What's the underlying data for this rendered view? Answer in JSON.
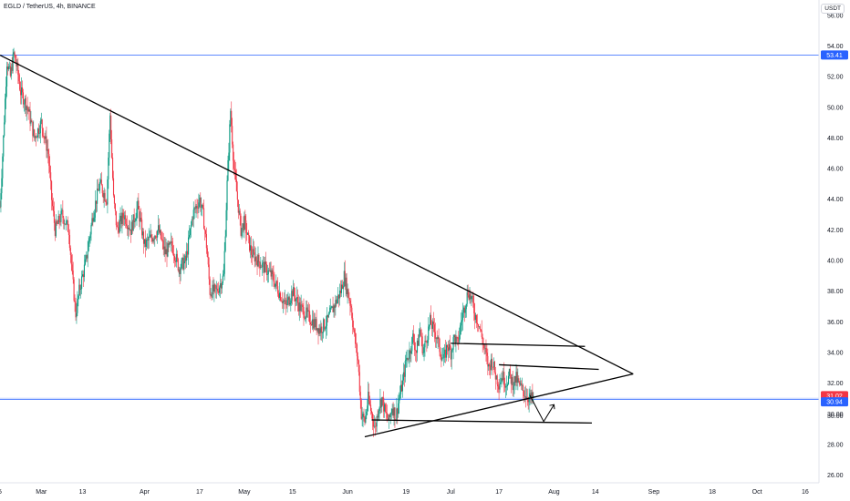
{
  "header": {
    "symbol": "EGLD / TetherUS, 4h, BINANCE"
  },
  "unit_badge": "USDT",
  "chart_data": {
    "type": "line",
    "title": "EGLD / TetherUS, 4h, BINANCE",
    "xlabel": "",
    "ylabel": "",
    "ylim": [
      25.5,
      57.0
    ],
    "y_ticks": [
      26,
      28,
      30,
      32,
      34,
      36,
      38,
      40,
      42,
      44,
      46,
      48,
      50,
      52,
      54,
      56
    ],
    "y_tick_labels": [
      "26.00",
      "28.00",
      "30.00",
      "32.00",
      "34.00",
      "36.00",
      "38.00",
      "40.00",
      "42.00",
      "44.00",
      "46.00",
      "48.00",
      "50.00",
      "52.00",
      "54.00",
      "56.00"
    ],
    "x_range": [
      0,
      238
    ],
    "x_ticks": [
      {
        "x": 0,
        "label": "5"
      },
      {
        "x": 12,
        "label": "Mar"
      },
      {
        "x": 24,
        "label": "13"
      },
      {
        "x": 42,
        "label": "Apr"
      },
      {
        "x": 58,
        "label": "17"
      },
      {
        "x": 71,
        "label": "May"
      },
      {
        "x": 85,
        "label": "15"
      },
      {
        "x": 101,
        "label": "Jun"
      },
      {
        "x": 118,
        "label": "19"
      },
      {
        "x": 131,
        "label": "Jul"
      },
      {
        "x": 145,
        "label": "17"
      },
      {
        "x": 161,
        "label": "Aug"
      },
      {
        "x": 173,
        "label": "14"
      },
      {
        "x": 190,
        "label": "Sep"
      },
      {
        "x": 207,
        "label": "18"
      },
      {
        "x": 220,
        "label": "Oct"
      },
      {
        "x": 234,
        "label": "16"
      }
    ],
    "price_waypoints": [
      [
        0,
        43.5
      ],
      [
        1,
        48
      ],
      [
        2,
        53
      ],
      [
        3,
        52
      ],
      [
        4,
        53.5
      ],
      [
        5,
        52.5
      ],
      [
        6,
        51
      ],
      [
        8,
        50
      ],
      [
        10,
        48
      ],
      [
        12,
        49
      ],
      [
        14,
        47
      ],
      [
        15,
        44
      ],
      [
        16,
        42
      ],
      [
        18,
        43
      ],
      [
        20,
        42
      ],
      [
        21,
        39
      ],
      [
        22,
        36.5
      ],
      [
        23,
        38
      ],
      [
        25,
        40
      ],
      [
        27,
        43
      ],
      [
        29,
        45
      ],
      [
        31,
        44
      ],
      [
        32,
        49.5
      ],
      [
        33,
        44
      ],
      [
        34,
        42
      ],
      [
        36,
        43
      ],
      [
        38,
        42
      ],
      [
        40,
        43.5
      ],
      [
        42,
        41
      ],
      [
        44,
        41.5
      ],
      [
        46,
        42
      ],
      [
        48,
        40.5
      ],
      [
        50,
        41
      ],
      [
        52,
        39.5
      ],
      [
        54,
        40
      ],
      [
        56,
        43
      ],
      [
        58,
        44
      ],
      [
        59,
        43
      ],
      [
        60,
        41
      ],
      [
        61,
        38
      ],
      [
        63,
        38
      ],
      [
        65,
        39
      ],
      [
        66,
        45
      ],
      [
        67,
        49.8
      ],
      [
        68,
        46
      ],
      [
        69,
        44
      ],
      [
        70,
        42
      ],
      [
        71,
        42.5
      ],
      [
        73,
        40.5
      ],
      [
        75,
        40
      ],
      [
        77,
        39.5
      ],
      [
        79,
        39
      ],
      [
        81,
        38
      ],
      [
        83,
        37
      ],
      [
        85,
        38
      ],
      [
        87,
        37
      ],
      [
        89,
        36.5
      ],
      [
        91,
        36
      ],
      [
        93,
        35.5
      ],
      [
        95,
        36
      ],
      [
        97,
        37
      ],
      [
        99,
        38
      ],
      [
        100,
        39
      ],
      [
        101,
        38
      ],
      [
        102,
        37
      ],
      [
        103,
        35
      ],
      [
        104,
        33.5
      ],
      [
        105,
        30
      ],
      [
        106,
        29.5
      ],
      [
        107,
        31
      ],
      [
        108,
        30
      ],
      [
        109,
        29
      ],
      [
        110,
        30.5
      ],
      [
        111,
        31
      ],
      [
        112,
        30
      ],
      [
        113,
        29.5
      ],
      [
        114,
        30.5
      ],
      [
        115,
        29.8
      ],
      [
        116,
        31
      ],
      [
        117,
        32
      ],
      [
        118,
        33.5
      ],
      [
        119,
        34
      ],
      [
        120,
        35
      ],
      [
        121,
        34
      ],
      [
        122,
        35.5
      ],
      [
        123,
        34
      ],
      [
        124,
        35
      ],
      [
        125,
        36
      ],
      [
        126,
        35.5
      ],
      [
        127,
        35
      ],
      [
        128,
        34
      ],
      [
        129,
        33.5
      ],
      [
        130,
        34.5
      ],
      [
        131,
        34
      ],
      [
        132,
        35
      ],
      [
        133,
        34.5
      ],
      [
        134,
        36
      ],
      [
        135,
        37
      ],
      [
        136,
        38
      ],
      [
        137,
        37.5
      ],
      [
        138,
        36.5
      ],
      [
        139,
        36
      ],
      [
        140,
        35
      ],
      [
        141,
        34
      ],
      [
        142,
        33
      ],
      [
        143,
        33.5
      ],
      [
        144,
        32.5
      ],
      [
        145,
        32
      ],
      [
        146,
        32.5
      ],
      [
        147,
        32
      ],
      [
        148,
        32.5
      ],
      [
        149,
        32
      ],
      [
        150,
        32.3
      ],
      [
        151,
        31.8
      ],
      [
        152,
        31.5
      ],
      [
        153,
        31.2
      ],
      [
        154,
        31
      ],
      [
        155,
        31.02
      ]
    ],
    "annotations": {
      "trend_lines": [
        {
          "name": "upper-descending-trendline",
          "from": [
            0,
            53.4
          ],
          "to": [
            184,
            32.6
          ]
        },
        {
          "name": "lower-ascending-trendline",
          "from": [
            106,
            28.5
          ],
          "to": [
            184,
            32.6
          ]
        },
        {
          "name": "resistance-line-1",
          "from": [
            131,
            34.6
          ],
          "to": [
            170,
            34.4
          ]
        },
        {
          "name": "resistance-line-2",
          "from": [
            145,
            33.2
          ],
          "to": [
            174,
            32.9
          ]
        },
        {
          "name": "support-line",
          "from": [
            108,
            29.6
          ],
          "to": [
            172,
            29.4
          ]
        }
      ],
      "projection_arrow": {
        "points": [
          [
            154,
            31.2
          ],
          [
            158,
            29.5
          ],
          [
            161,
            30.6
          ]
        ]
      },
      "horizontal_levels": [
        {
          "name": "level-53-41",
          "value": 53.41,
          "label": "53.41",
          "color": "#2962ff"
        },
        {
          "name": "level-31-02",
          "value": 31.02,
          "label": "31.02",
          "color": "#f23645"
        },
        {
          "name": "level-30-94",
          "value": 30.94,
          "label": "30.94",
          "color": "#2962ff"
        }
      ],
      "partial_label": "30.00"
    },
    "colors": {
      "up": "#089981",
      "down": "#f23645",
      "level": "#2962ff",
      "drawing": "#000000",
      "axis_text": "#131722",
      "border": "#e0e3eb"
    }
  }
}
